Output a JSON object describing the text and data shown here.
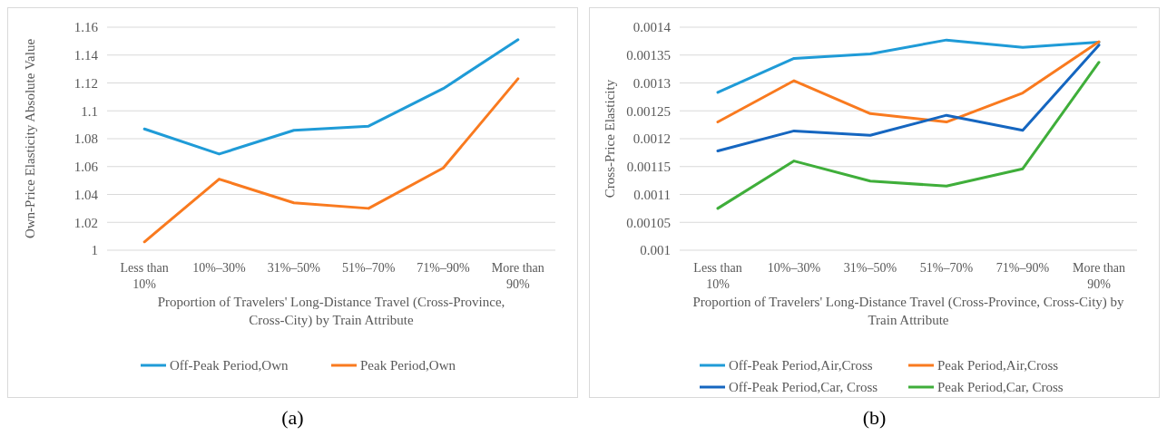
{
  "chart_data": [
    {
      "type": "line",
      "categories": [
        "Less than 10%",
        "10%–30%",
        "31%–50%",
        "51%–70%",
        "71%–90%",
        "More than 90%"
      ],
      "xlabel": "Proportion of Travelers' Long-Distance Travel (Cross-Province, Cross-City) by Train Attribute",
      "ylabel": "Own-Price Elasticity Absolute Value",
      "ylim": [
        1,
        1.16
      ],
      "yticks": [
        1,
        1.02,
        1.04,
        1.06,
        1.08,
        1.1,
        1.12,
        1.14,
        1.16
      ],
      "grid": "y",
      "legend": "bottom",
      "marker": "none",
      "annotations": [
        "(a)"
      ],
      "series": [
        {
          "name": "Off-Peak Period,Own",
          "color": "#1f9bd7",
          "values": [
            1.087,
            1.069,
            1.086,
            1.089,
            1.116,
            1.151
          ]
        },
        {
          "name": "Peak Period,Own",
          "color": "#f97a1f",
          "values": [
            1.006,
            1.051,
            1.034,
            1.03,
            1.059,
            1.123
          ]
        }
      ]
    },
    {
      "type": "line",
      "categories": [
        "Less than 10%",
        "10%–30%",
        "31%–50%",
        "51%–70%",
        "71%–90%",
        "More than 90%"
      ],
      "xlabel": "Proportion of Travelers' Long-Distance Travel (Cross-Province, Cross-City) by Train Attribute",
      "ylabel": "Cross-Price Elasticity",
      "ylim": [
        0.001,
        0.0014
      ],
      "yticks": [
        0.001,
        0.00105,
        0.0011,
        0.00115,
        0.0012,
        0.00125,
        0.0013,
        0.00135,
        0.0014
      ],
      "grid": "y",
      "legend": "bottom",
      "marker": "none",
      "annotations": [
        "(b)"
      ],
      "series": [
        {
          "name": "Off-Peak Period,Air,Cross",
          "color": "#1f9bd7",
          "values": [
            0.001283,
            0.001344,
            0.001352,
            0.001377,
            0.001364,
            0.001373
          ]
        },
        {
          "name": "Peak Period,Air,Cross",
          "color": "#f97a1f",
          "values": [
            0.00123,
            0.001304,
            0.001245,
            0.00123,
            0.001282,
            0.001374
          ]
        },
        {
          "name": "Off-Peak Period,Car, Cross",
          "color": "#1566c0",
          "values": [
            0.001178,
            0.001214,
            0.001206,
            0.001242,
            0.001215,
            0.001368
          ]
        },
        {
          "name": "Peak Period,Car, Cross",
          "color": "#3fae3a",
          "values": [
            0.001075,
            0.00116,
            0.001124,
            0.001115,
            0.001146,
            0.001337
          ]
        }
      ]
    }
  ]
}
